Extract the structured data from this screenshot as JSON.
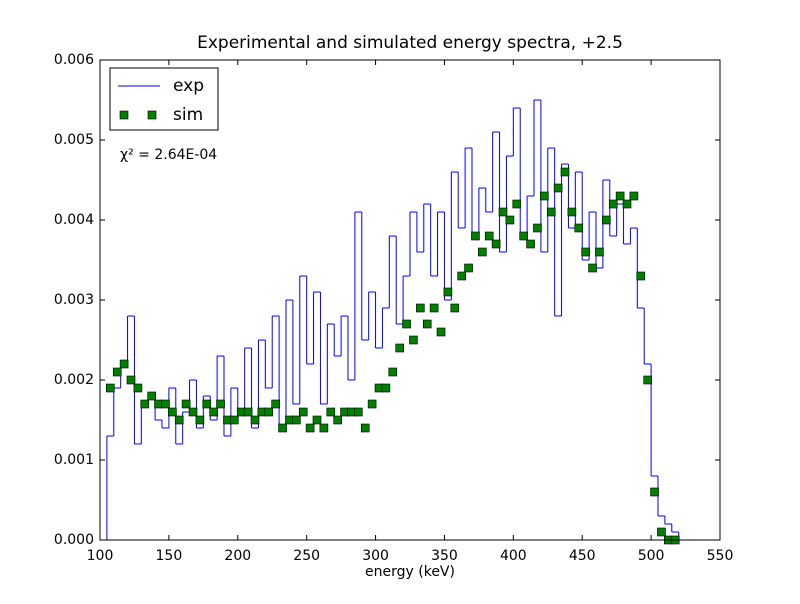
{
  "chart_data": {
    "type": "line",
    "title": "Experimental and simulated energy spectra, +2.5",
    "x_label": "energy (keV)",
    "annotation": "χ² = 2.64E-04",
    "legend": "upper left",
    "xlim": [
      100,
      550
    ],
    "ylim": [
      0,
      0.006
    ],
    "xticks": [
      100,
      150,
      200,
      250,
      300,
      350,
      400,
      450,
      500,
      550
    ],
    "yticks": [
      {
        "value": 0,
        "label": "0.000"
      },
      {
        "value": 0.001,
        "label": "0.001"
      },
      {
        "value": 0.002,
        "label": "0.002"
      },
      {
        "value": 0.003,
        "label": "0.003"
      },
      {
        "value": 0.004,
        "label": "0.004"
      },
      {
        "value": 0.005,
        "label": "0.005"
      },
      {
        "value": 0.006,
        "label": "0.006"
      }
    ],
    "series": [
      {
        "name": "exp",
        "type": "step",
        "color": "#0000ff",
        "bins": [
          105,
          110,
          115,
          120,
          125,
          130,
          135,
          140,
          145,
          150,
          155,
          160,
          165,
          170,
          175,
          180,
          185,
          190,
          195,
          200,
          205,
          210,
          215,
          220,
          225,
          230,
          235,
          240,
          245,
          250,
          255,
          260,
          265,
          270,
          275,
          280,
          285,
          290,
          295,
          300,
          305,
          310,
          315,
          320,
          325,
          330,
          335,
          340,
          345,
          350,
          355,
          360,
          365,
          370,
          375,
          380,
          385,
          390,
          395,
          400,
          405,
          410,
          415,
          420,
          425,
          430,
          435,
          440,
          445,
          450,
          455,
          460,
          465,
          470,
          475,
          480,
          485,
          490,
          495,
          500,
          505,
          510,
          515,
          520
        ],
        "values": [
          0.0013,
          0.0019,
          0.0022,
          0.0028,
          0.0012,
          0.0017,
          0.0018,
          0.0015,
          0.0014,
          0.0019,
          0.0012,
          0.0016,
          0.002,
          0.0014,
          0.0018,
          0.0015,
          0.0023,
          0.0013,
          0.0019,
          0.0016,
          0.0024,
          0.0014,
          0.0025,
          0.0019,
          0.0028,
          0.0014,
          0.003,
          0.0017,
          0.0033,
          0.0022,
          0.0031,
          0.0017,
          0.0027,
          0.0023,
          0.0028,
          0.002,
          0.0041,
          0.0025,
          0.0031,
          0.0024,
          0.0029,
          0.0038,
          0.0027,
          0.0033,
          0.0041,
          0.0036,
          0.0042,
          0.0033,
          0.0041,
          0.003,
          0.0046,
          0.0039,
          0.0049,
          0.0038,
          0.0044,
          0.0041,
          0.0051,
          0.0036,
          0.0048,
          0.0054,
          0.0038,
          0.0043,
          0.0055,
          0.0036,
          0.0049,
          0.0028,
          0.0047,
          0.0039,
          0.0046,
          0.0035,
          0.0041,
          0.0034,
          0.0045,
          0.0038,
          0.0042,
          0.0037,
          0.0039,
          0.0029,
          0.0022,
          0.0008,
          0.0003,
          0.0002,
          0.0001
        ]
      },
      {
        "name": "sim",
        "type": "scatter",
        "color": "#007f00",
        "x": [
          107.5,
          112.5,
          117.5,
          122.5,
          127.5,
          132.5,
          137.5,
          142.5,
          147.5,
          152.5,
          157.5,
          162.5,
          167.5,
          172.5,
          177.5,
          182.5,
          187.5,
          192.5,
          197.5,
          202.5,
          207.5,
          212.5,
          217.5,
          222.5,
          227.5,
          232.5,
          237.5,
          242.5,
          247.5,
          252.5,
          257.5,
          262.5,
          267.5,
          272.5,
          277.5,
          282.5,
          287.5,
          292.5,
          297.5,
          302.5,
          307.5,
          312.5,
          317.5,
          322.5,
          327.5,
          332.5,
          337.5,
          342.5,
          347.5,
          352.5,
          357.5,
          362.5,
          367.5,
          372.5,
          377.5,
          382.5,
          387.5,
          392.5,
          397.5,
          402.5,
          407.5,
          412.5,
          417.5,
          422.5,
          427.5,
          432.5,
          437.5,
          442.5,
          447.5,
          452.5,
          457.5,
          462.5,
          467.5,
          472.5,
          477.5,
          482.5,
          487.5,
          492.5,
          497.5,
          502.5,
          507.5,
          512.5,
          517.5
        ],
        "values": [
          0.0019,
          0.0021,
          0.0022,
          0.002,
          0.0019,
          0.0017,
          0.0018,
          0.0017,
          0.0017,
          0.0016,
          0.0015,
          0.0017,
          0.0016,
          0.0015,
          0.0017,
          0.0016,
          0.0017,
          0.0015,
          0.0015,
          0.0016,
          0.0016,
          0.0015,
          0.0016,
          0.0016,
          0.0017,
          0.0014,
          0.0015,
          0.0015,
          0.0016,
          0.0014,
          0.0015,
          0.0014,
          0.0016,
          0.0015,
          0.0016,
          0.0016,
          0.0016,
          0.0014,
          0.0017,
          0.0019,
          0.0019,
          0.0021,
          0.0024,
          0.0027,
          0.0025,
          0.0029,
          0.0027,
          0.0029,
          0.0026,
          0.0031,
          0.0029,
          0.0033,
          0.0034,
          0.0038,
          0.0036,
          0.0038,
          0.0037,
          0.0041,
          0.004,
          0.0042,
          0.0038,
          0.0037,
          0.0039,
          0.0043,
          0.0041,
          0.0044,
          0.0046,
          0.0041,
          0.0039,
          0.0036,
          0.0034,
          0.0036,
          0.004,
          0.0042,
          0.0043,
          0.0042,
          0.0043,
          0.0033,
          0.002,
          0.0006,
          0.0001,
          0,
          0
        ]
      }
    ]
  }
}
